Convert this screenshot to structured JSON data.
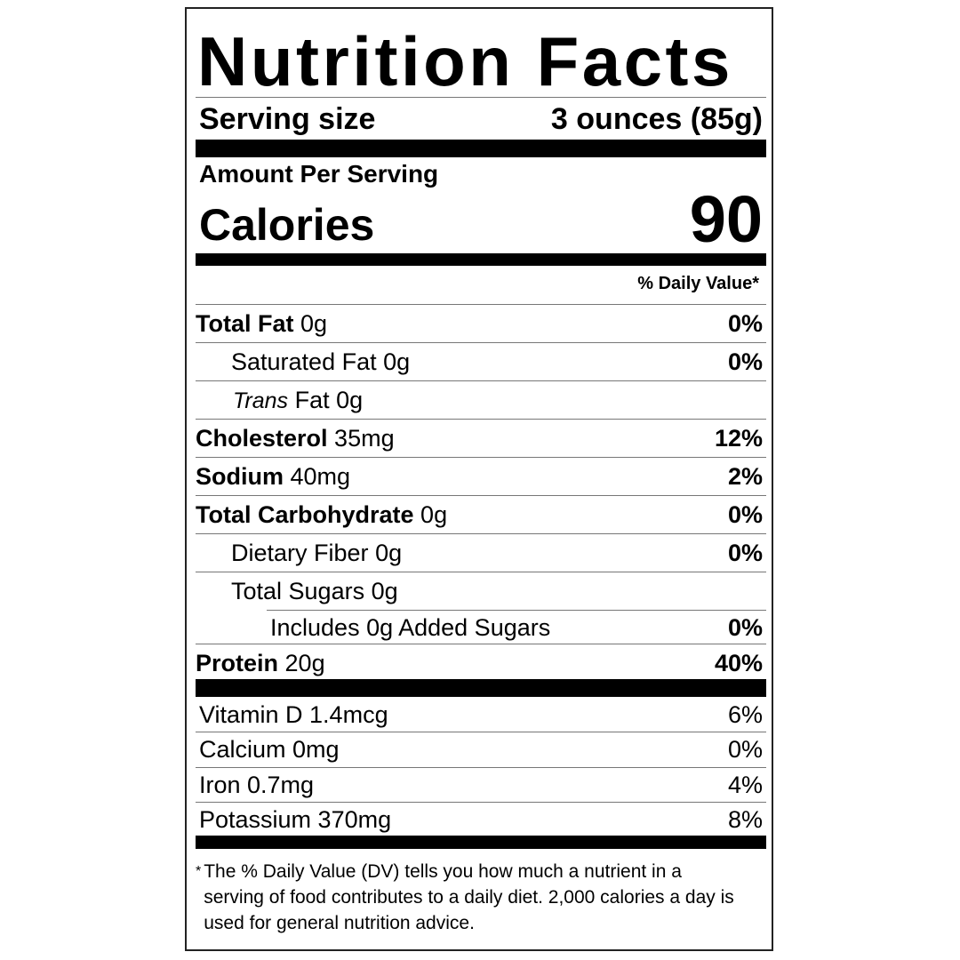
{
  "title": "Nutrition Facts",
  "serving": {
    "label": "Serving size",
    "value": "3 ounces (85g)"
  },
  "amount_per_serving": "Amount Per Serving",
  "calories": {
    "label": "Calories",
    "value": "90"
  },
  "daily_value_header": "% Daily Value*",
  "nutrients": [
    {
      "name": "Total Fat",
      "amount": "0g",
      "dv": "0%"
    },
    {
      "name": "Saturated Fat",
      "amount": "0g",
      "dv": "0%"
    },
    {
      "name_italic": "Trans",
      "name": "Fat",
      "amount": "0g",
      "dv": ""
    },
    {
      "name": "Cholesterol",
      "amount": "35mg",
      "dv": "12%"
    },
    {
      "name": "Sodium",
      "amount": "40mg",
      "dv": "2%"
    },
    {
      "name": "Total Carbohydrate",
      "amount": "0g",
      "dv": "0%"
    },
    {
      "name": "Dietary Fiber",
      "amount": "0g",
      "dv": "0%"
    },
    {
      "name": "Total Sugars",
      "amount": "0g",
      "dv": ""
    },
    {
      "name": "Includes 0g Added Sugars",
      "amount": "",
      "dv": "0%"
    },
    {
      "name": "Protein",
      "amount": "20g",
      "dv": "40%"
    }
  ],
  "vitamins": [
    {
      "name": "Vitamin D 1.4mcg",
      "dv": "6%"
    },
    {
      "name": "Calcium 0mg",
      "dv": "0%"
    },
    {
      "name": "Iron 0.7mg",
      "dv": "4%"
    },
    {
      "name": "Potassium 370mg",
      "dv": "8%"
    }
  ],
  "footnote": {
    "star": "*",
    "text": "The % Daily Value (DV) tells you how much a nutrient in a serving of food contributes to a daily diet. 2,000 calories a day is used for general nutrition advice."
  }
}
